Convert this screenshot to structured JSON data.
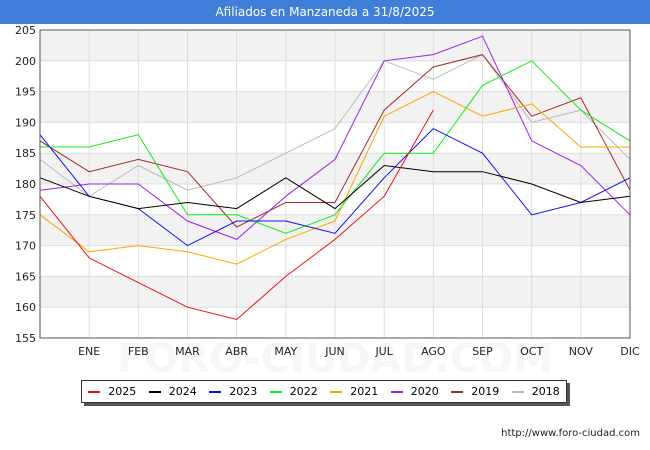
{
  "title": "Afiliados en Manzaneda a 31/8/2025",
  "watermark_url": "http://www.foro-ciudad.com",
  "background_watermark": "FORO-CIUDAD.COM",
  "chart_data": {
    "type": "line",
    "categories": [
      "",
      "ENE",
      "FEB",
      "MAR",
      "ABR",
      "MAY",
      "JUN",
      "JUL",
      "AGO",
      "SEP",
      "OCT",
      "NOV",
      "DIC"
    ],
    "ylim": [
      155,
      205
    ],
    "yticks": [
      155,
      160,
      165,
      170,
      175,
      180,
      185,
      190,
      195,
      200,
      205
    ],
    "grid": true,
    "legend_position": "bottom",
    "series": [
      {
        "name": "2025",
        "color": "#ee1111",
        "values": [
          178,
          168,
          164,
          160,
          158,
          165,
          171,
          178,
          192,
          null,
          null,
          null,
          null
        ]
      },
      {
        "name": "2024",
        "color": "#000000",
        "values": [
          181,
          178,
          176,
          177,
          176,
          181,
          176,
          183,
          182,
          182,
          180,
          177,
          178
        ]
      },
      {
        "name": "2023",
        "color": "#1111ee",
        "values": [
          188,
          178,
          176,
          170,
          174,
          174,
          172,
          181,
          189,
          185,
          175,
          177,
          181
        ]
      },
      {
        "name": "2022",
        "color": "#11ee11",
        "values": [
          186,
          186,
          188,
          175,
          175,
          172,
          175,
          185,
          185,
          196,
          200,
          192,
          187
        ]
      },
      {
        "name": "2021",
        "color": "#ffa500",
        "values": [
          175,
          169,
          170,
          169,
          167,
          171,
          174,
          191,
          195,
          191,
          193,
          186,
          186
        ]
      },
      {
        "name": "2020",
        "color": "#a020f0",
        "values": [
          179,
          180,
          180,
          174,
          171,
          178,
          184,
          200,
          201,
          204,
          187,
          183,
          175
        ]
      },
      {
        "name": "2019",
        "color": "#a52a2a",
        "values": [
          187,
          182,
          184,
          182,
          173,
          177,
          177,
          192,
          199,
          201,
          191,
          194,
          179
        ]
      },
      {
        "name": "2018",
        "color": "#bbbbbb",
        "values": [
          184,
          178,
          183,
          179,
          181,
          185,
          189,
          200,
          197,
          201,
          190,
          192,
          184
        ]
      }
    ]
  }
}
